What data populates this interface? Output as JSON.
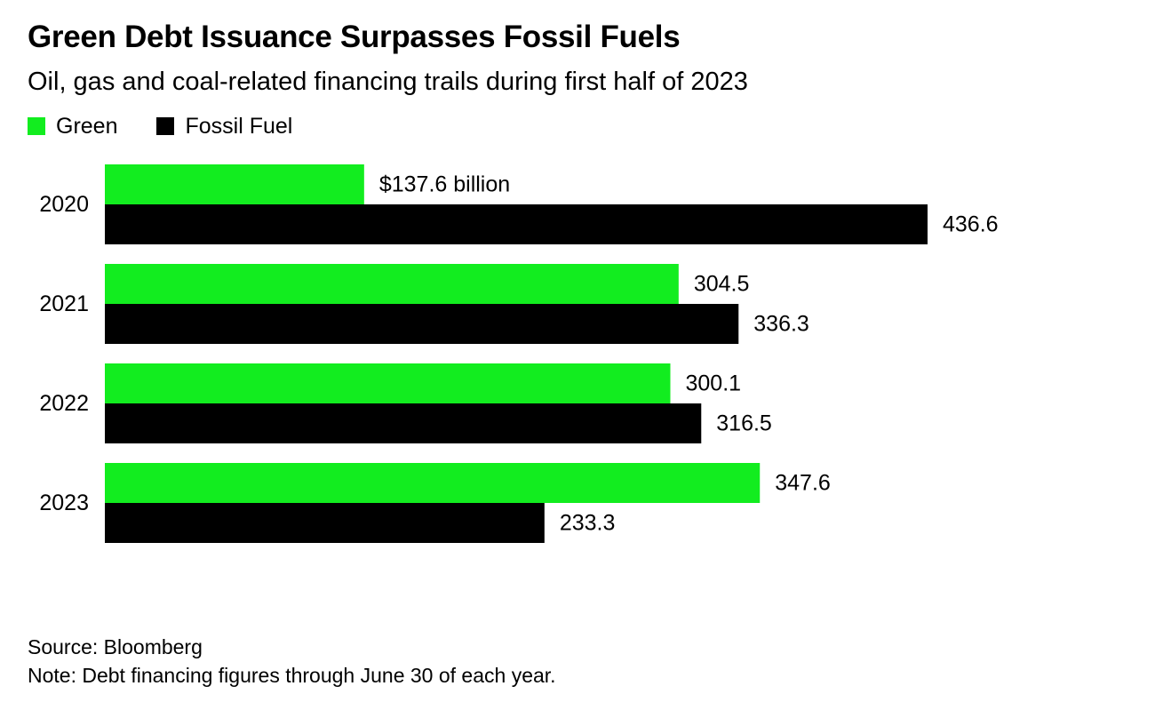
{
  "title": "Green Debt Issuance Surpasses Fossil Fuels",
  "subtitle": "Oil, gas and coal-related financing trails during first half of 2023",
  "legend": [
    {
      "label": "Green",
      "color": "#12ED1F"
    },
    {
      "label": "Fossil Fuel",
      "color": "#000000"
    }
  ],
  "chart_data": {
    "type": "bar",
    "orientation": "horizontal",
    "categories": [
      "2020",
      "2021",
      "2022",
      "2023"
    ],
    "series": [
      {
        "name": "Green",
        "color": "#12ED1F",
        "values": [
          137.6,
          304.5,
          300.1,
          347.6
        ],
        "labels": [
          "$137.6 billion",
          "304.5",
          "300.1",
          "347.6"
        ]
      },
      {
        "name": "Fossil Fuel",
        "color": "#000000",
        "values": [
          436.6,
          336.3,
          316.5,
          233.3
        ],
        "labels": [
          "436.6",
          "336.3",
          "316.5",
          "233.3"
        ]
      }
    ],
    "title": "Green Debt Issuance Surpasses Fossil Fuels",
    "subtitle": "Oil, gas and coal-related financing trails during first half of 2023",
    "xlabel": "",
    "ylabel": "",
    "xlim": [
      0,
      436.6
    ],
    "grid": false,
    "legend_position": "top-left"
  },
  "footer": {
    "source": "Source: Bloomberg",
    "note": "Note: Debt financing figures through June 30 of each year."
  }
}
